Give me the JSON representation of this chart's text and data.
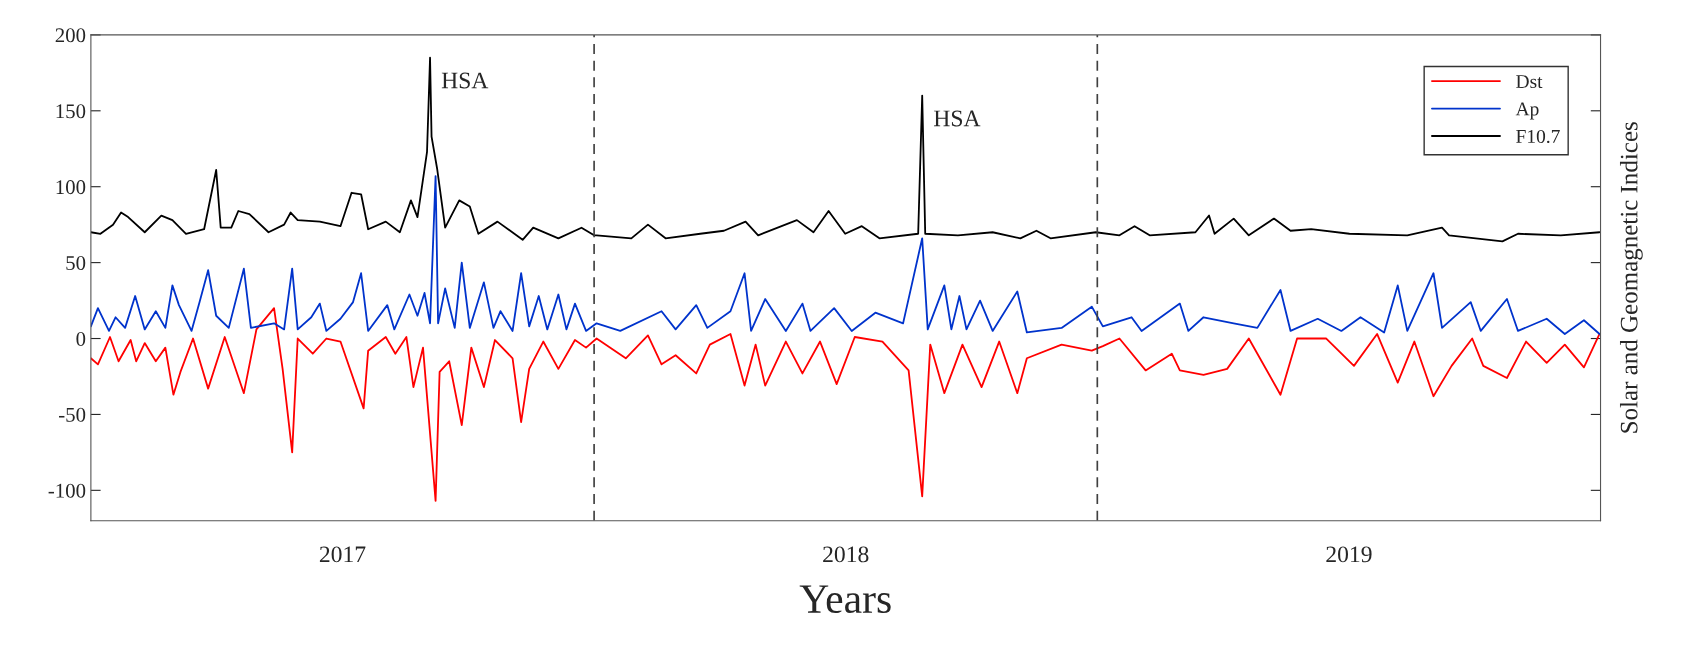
{
  "chart_data": {
    "type": "line",
    "xlabel": "Years",
    "ylabel": "Solar and Geomagnetic Indices",
    "xlim": [
      2017,
      2020
    ],
    "xticks": [
      {
        "value": 2017.5,
        "label": "2017"
      },
      {
        "value": 2018.5,
        "label": "2018"
      },
      {
        "value": 2019.5,
        "label": "2019"
      }
    ],
    "ylim": [
      -120,
      200
    ],
    "yticks": [
      -100,
      -50,
      0,
      50,
      100,
      150,
      200
    ],
    "grid": false,
    "legend": "top right",
    "marker": "none",
    "line_style": "solid",
    "ref_lines": [
      {
        "axis": "x",
        "value": 2018,
        "color": "#404040",
        "line_style": "dashed"
      },
      {
        "axis": "x",
        "value": 2019,
        "color": "#404040",
        "line_style": "dashed"
      }
    ],
    "annotations": [
      {
        "text": "HSA",
        "x": 2017.674,
        "y": 185
      },
      {
        "text": "HSA",
        "x": 2018.652,
        "y": 160
      }
    ],
    "series": [
      {
        "name": "Dst",
        "color": "#ff0000",
        "x": [
          2017.0,
          2017.014,
          2017.038,
          2017.055,
          2017.079,
          2017.09,
          2017.107,
          2017.129,
          2017.148,
          2017.164,
          2017.178,
          2017.203,
          2017.233,
          2017.266,
          2017.304,
          2017.329,
          2017.364,
          2017.381,
          2017.4,
          2017.411,
          2017.441,
          2017.468,
          2017.496,
          2017.542,
          2017.551,
          2017.586,
          2017.605,
          2017.627,
          2017.641,
          2017.66,
          2017.685,
          2017.693,
          2017.712,
          2017.737,
          2017.756,
          2017.781,
          2017.803,
          2017.838,
          2017.855,
          2017.871,
          2017.899,
          2017.929,
          2017.962,
          2017.984,
          2018.005,
          2018.063,
          2018.107,
          2018.134,
          2018.162,
          2018.203,
          2018.23,
          2018.271,
          2018.299,
          2018.321,
          2018.34,
          2018.381,
          2018.414,
          2018.449,
          2018.482,
          2018.518,
          2018.573,
          2018.625,
          2018.652,
          2018.668,
          2018.696,
          2018.732,
          2018.77,
          2018.805,
          2018.841,
          2018.86,
          2018.929,
          2018.989,
          2019.011,
          2019.044,
          2019.096,
          2019.148,
          2019.164,
          2019.211,
          2019.258,
          2019.301,
          2019.364,
          2019.397,
          2019.455,
          2019.51,
          2019.556,
          2019.597,
          2019.63,
          2019.668,
          2019.704,
          2019.745,
          2019.767,
          2019.814,
          2019.852,
          2019.893,
          2019.929,
          2019.967,
          2019.998
        ],
        "values": [
          -13,
          -17,
          1,
          -15,
          -1,
          -15,
          -3,
          -15,
          -6,
          -37,
          -22,
          0,
          -33,
          1,
          -36,
          6,
          20,
          -20,
          -75,
          0,
          -10,
          0,
          -2,
          -46,
          -8,
          1,
          -10,
          1,
          -32,
          -6,
          -107,
          -22,
          -15,
          -57,
          -6,
          -32,
          -1,
          -13,
          -55,
          -20,
          -2,
          -20,
          -1,
          -6,
          0,
          -13,
          2,
          -17,
          -11,
          -23,
          -4,
          3,
          -31,
          -4,
          -31,
          -2,
          -23,
          -2,
          -30,
          1,
          -2,
          -21,
          -104,
          -4,
          -36,
          -4,
          -32,
          -2,
          -36,
          -13,
          -4,
          -8,
          -5,
          0,
          -21,
          -10,
          -21,
          -24,
          -20,
          0,
          -37,
          0,
          0,
          -18,
          3,
          -29,
          -2,
          -38,
          -18,
          0,
          -18,
          -26,
          -2,
          -16,
          -4,
          -19,
          3
        ]
      },
      {
        "name": "Ap",
        "color": "#0033cc",
        "x": [
          2017.0,
          2017.014,
          2017.036,
          2017.049,
          2017.068,
          2017.088,
          2017.107,
          2017.129,
          2017.148,
          2017.162,
          2017.175,
          2017.2,
          2017.216,
          2017.233,
          2017.249,
          2017.274,
          2017.304,
          2017.318,
          2017.364,
          2017.384,
          2017.4,
          2017.411,
          2017.438,
          2017.455,
          2017.468,
          2017.496,
          2017.521,
          2017.537,
          2017.551,
          2017.589,
          2017.603,
          2017.633,
          2017.649,
          2017.663,
          2017.674,
          2017.685,
          2017.69,
          2017.704,
          2017.723,
          2017.737,
          2017.753,
          2017.781,
          2017.8,
          2017.814,
          2017.838,
          2017.855,
          2017.871,
          2017.89,
          2017.907,
          2017.929,
          2017.945,
          2017.962,
          2017.984,
          2018.005,
          2018.052,
          2018.134,
          2018.162,
          2018.203,
          2018.225,
          2018.271,
          2018.299,
          2018.312,
          2018.34,
          2018.381,
          2018.414,
          2018.43,
          2018.477,
          2018.512,
          2018.559,
          2018.614,
          2018.652,
          2018.663,
          2018.696,
          2018.71,
          2018.726,
          2018.74,
          2018.767,
          2018.792,
          2018.841,
          2018.86,
          2018.929,
          2018.989,
          2019.011,
          2019.068,
          2019.088,
          2019.164,
          2019.181,
          2019.211,
          2019.271,
          2019.318,
          2019.364,
          2019.384,
          2019.438,
          2019.485,
          2019.523,
          2019.57,
          2019.597,
          2019.616,
          2019.668,
          2019.685,
          2019.742,
          2019.762,
          2019.814,
          2019.836,
          2019.893,
          2019.929,
          2019.967,
          2019.998
        ],
        "values": [
          8,
          20,
          5,
          14,
          7,
          28,
          6,
          18,
          7,
          35,
          22,
          5,
          24,
          45,
          15,
          7,
          46,
          7,
          10,
          6,
          46,
          6,
          14,
          23,
          5,
          13,
          24,
          43,
          5,
          22,
          6,
          29,
          15,
          30,
          10,
          107,
          10,
          33,
          7,
          50,
          7,
          37,
          7,
          18,
          5,
          43,
          8,
          28,
          6,
          29,
          6,
          23,
          5,
          10,
          5,
          18,
          6,
          22,
          7,
          18,
          43,
          5,
          26,
          5,
          23,
          5,
          20,
          5,
          17,
          10,
          66,
          6,
          35,
          6,
          28,
          6,
          25,
          5,
          31,
          4,
          7,
          21,
          8,
          14,
          5,
          23,
          5,
          14,
          10,
          7,
          32,
          5,
          13,
          5,
          14,
          4,
          35,
          5,
          43,
          7,
          24,
          5,
          26,
          5,
          13,
          3,
          12,
          3
        ]
      },
      {
        "name": "F10.7",
        "color": "#000000",
        "x": [
          2017.0,
          2017.019,
          2017.044,
          2017.06,
          2017.074,
          2017.107,
          2017.14,
          2017.162,
          2017.189,
          2017.225,
          2017.249,
          2017.258,
          2017.279,
          2017.293,
          2017.315,
          2017.353,
          2017.384,
          2017.397,
          2017.411,
          2017.455,
          2017.496,
          2017.518,
          2017.537,
          2017.551,
          2017.586,
          2017.614,
          2017.636,
          2017.649,
          2017.668,
          2017.674,
          2017.677,
          2017.688,
          2017.704,
          2017.732,
          2017.753,
          2017.77,
          2017.808,
          2017.858,
          2017.879,
          2017.929,
          2017.975,
          2018.0,
          2018.005,
          2018.074,
          2018.107,
          2018.142,
          2018.211,
          2018.258,
          2018.301,
          2018.326,
          2018.403,
          2018.436,
          2018.466,
          2018.499,
          2018.532,
          2018.567,
          2018.644,
          2018.652,
          2018.658,
          2018.723,
          2018.792,
          2018.847,
          2018.879,
          2018.907,
          2018.997,
          2019.044,
          2019.074,
          2019.104,
          2019.195,
          2019.222,
          2019.233,
          2019.271,
          2019.301,
          2019.351,
          2019.384,
          2019.425,
          2019.501,
          2019.616,
          2019.685,
          2019.699,
          2019.805,
          2019.836,
          2019.921,
          2019.998
        ],
        "values": [
          70,
          69,
          75,
          83,
          80,
          70,
          81,
          78,
          69,
          72,
          111,
          73,
          73,
          84,
          82,
          70,
          75,
          83,
          78,
          77,
          74,
          96,
          95,
          72,
          77,
          70,
          91,
          80,
          123,
          185,
          133,
          112,
          73,
          91,
          87,
          69,
          77,
          65,
          73,
          66,
          73,
          68,
          68,
          66,
          75,
          66,
          69,
          71,
          77,
          68,
          78,
          70,
          84,
          69,
          74,
          66,
          69,
          160,
          69,
          68,
          70,
          66,
          71,
          66,
          70,
          68,
          74,
          68,
          70,
          81,
          69,
          79,
          68,
          79,
          71,
          72,
          69,
          68,
          73,
          68,
          64,
          69,
          68,
          70
        ]
      }
    ]
  }
}
